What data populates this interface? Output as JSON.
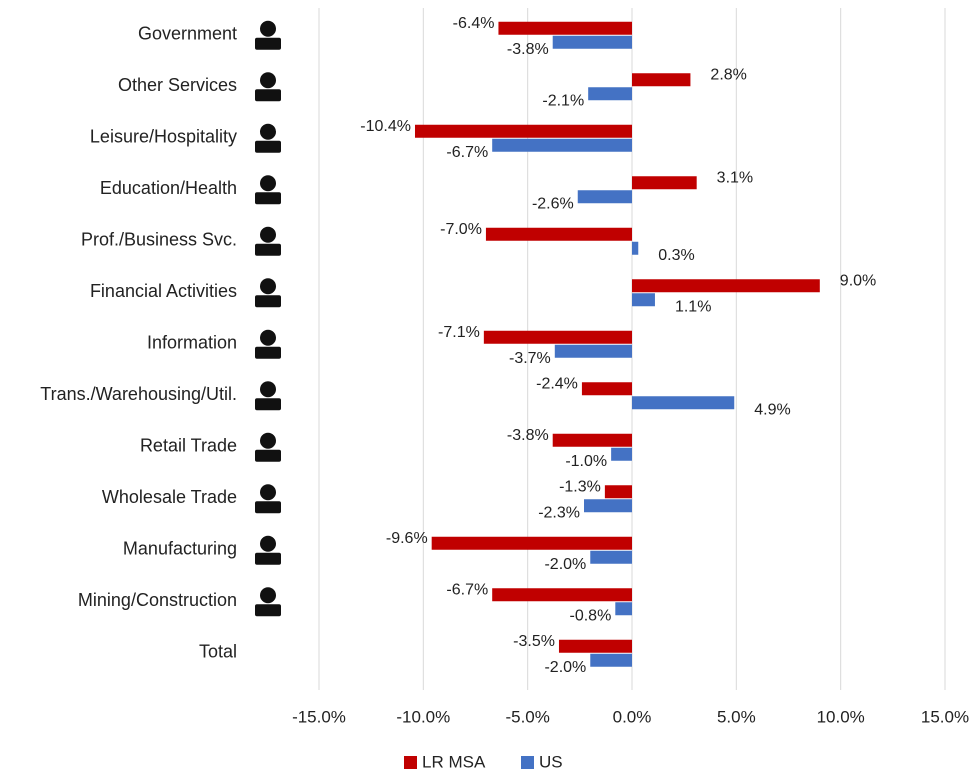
{
  "chart_data": {
    "type": "bar",
    "orientation": "horizontal",
    "categories": [
      "Government",
      "Other Services",
      "Leisure/Hospitality",
      "Education/Health",
      "Prof./Business Svc.",
      "Financial Activities",
      "Information",
      "Trans./Warehousing/Util.",
      "Retail Trade",
      "Wholesale Trade",
      "Manufacturing",
      "Mining/Construction",
      "Total"
    ],
    "series": [
      {
        "name": "LR MSA",
        "color": "#c00000",
        "values": [
          -6.4,
          2.8,
          -10.4,
          3.1,
          -7.0,
          9.0,
          -7.1,
          -2.4,
          -3.8,
          -1.3,
          -9.6,
          -6.7,
          -3.5
        ],
        "value_labels": [
          "-6.4%",
          "2.8%",
          "-10.4%",
          "3.1%",
          "-7.0%",
          "9.0%",
          "-7.1%",
          "-2.4%",
          "-3.8%",
          "-1.3%",
          "-9.6%",
          "-6.7%",
          "-3.5%"
        ]
      },
      {
        "name": "US",
        "color": "#4472c4",
        "values": [
          -3.8,
          -2.1,
          -6.7,
          -2.6,
          0.3,
          1.1,
          -3.7,
          4.9,
          -1.0,
          -2.3,
          -2.0,
          -0.8,
          -2.0
        ],
        "value_labels": [
          "-3.8%",
          "-2.1%",
          "-6.7%",
          "-2.6%",
          "0.3%",
          "1.1%",
          "-3.7%",
          "4.9%",
          "-1.0%",
          "-2.3%",
          "-2.0%",
          "-0.8%",
          "-2.0%"
        ]
      }
    ],
    "xlim": [
      -15,
      15
    ],
    "xticks": [
      {
        "value": -15,
        "label": "-15.0%"
      },
      {
        "value": -10,
        "label": "-10.0%"
      },
      {
        "value": -5,
        "label": "-5.0%"
      },
      {
        "value": 0,
        "label": "0.0%"
      },
      {
        "value": 5,
        "label": "5.0%"
      },
      {
        "value": 10,
        "label": "10.0%"
      },
      {
        "value": 15,
        "label": "15.0%"
      }
    ],
    "grid": true,
    "legend": "bottom"
  }
}
